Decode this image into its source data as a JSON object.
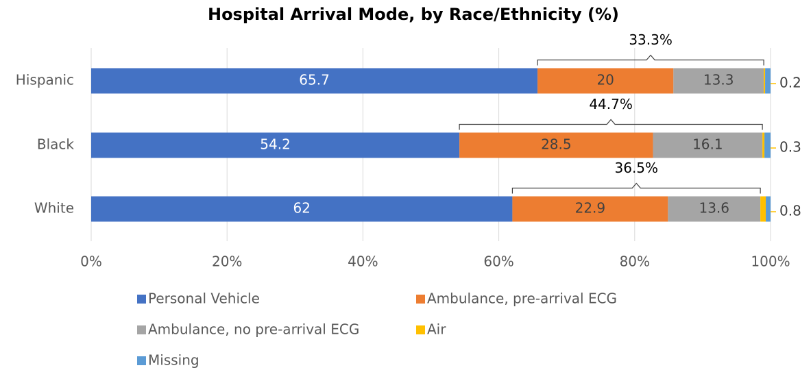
{
  "chart_data": {
    "type": "stacked-bar-horizontal",
    "title": "Hospital Arrival Mode, by Race/Ethnicity (%)",
    "categories": [
      "Hispanic",
      "Black",
      "White"
    ],
    "series": [
      {
        "name": "Personal Vehicle",
        "color": "#4472c4",
        "values": [
          65.7,
          54.2,
          62
        ]
      },
      {
        "name": "Ambulance, pre-arrival ECG",
        "color": "#ed7d31",
        "values": [
          20,
          28.5,
          22.9
        ]
      },
      {
        "name": "Ambulance, no pre-arrival ECG",
        "color": "#a5a5a5",
        "values": [
          13.3,
          16.1,
          13.6
        ]
      },
      {
        "name": "Air",
        "color": "#ffc000",
        "values": [
          0.2,
          0.3,
          0.8
        ]
      },
      {
        "name": "Missing",
        "color": "#5b9bd5",
        "values": [
          0.8,
          0.9,
          0.7
        ]
      }
    ],
    "bracket_labels": [
      "33.3%",
      "44.7%",
      "36.5%"
    ],
    "xlim": [
      0,
      100
    ],
    "xticks": [
      {
        "value": 0,
        "label": "0%"
      },
      {
        "value": 20,
        "label": "20%"
      },
      {
        "value": 40,
        "label": "40%"
      },
      {
        "value": 60,
        "label": "60%"
      },
      {
        "value": 80,
        "label": "80%"
      },
      {
        "value": 100,
        "label": "100%"
      }
    ],
    "grid": true
  }
}
